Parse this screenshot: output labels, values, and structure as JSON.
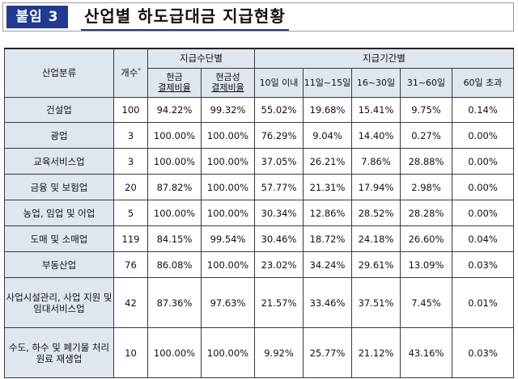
{
  "header": {
    "badge": "붙임 3",
    "title": "산업별 하도급대금 지급현황"
  },
  "table": {
    "col_industry": "산업분류",
    "col_count": "개수",
    "col_count_mark": "*",
    "group_method": "지급수단별",
    "method_cols": [
      {
        "line1": "현금",
        "line2": "결제비율"
      },
      {
        "line1": "현금성",
        "line2": "결제비율"
      }
    ],
    "group_period": "지급기간별",
    "period_cols": [
      "10일 이내",
      "11일~15일",
      "16~30일",
      "31~60일",
      "60일 초과"
    ],
    "rows": [
      {
        "industry": "건설업",
        "count": "100",
        "cash": "94.22%",
        "cashlike": "99.32%",
        "p1": "55.02%",
        "p2": "19.68%",
        "p3": "15.41%",
        "p4": "9.75%",
        "p5": "0.14%"
      },
      {
        "industry": "광업",
        "count": "3",
        "cash": "100.00%",
        "cashlike": "100.00%",
        "p1": "76.29%",
        "p2": "9.04%",
        "p3": "14.40%",
        "p4": "0.27%",
        "p5": "0.00%"
      },
      {
        "industry": "교육서비스업",
        "count": "3",
        "cash": "100.00%",
        "cashlike": "100.00%",
        "p1": "37.05%",
        "p2": "26.21%",
        "p3": "7.86%",
        "p4": "28.88%",
        "p5": "0.00%"
      },
      {
        "industry": "금융 및 보험업",
        "count": "20",
        "cash": "87.82%",
        "cashlike": "100.00%",
        "p1": "57.77%",
        "p2": "21.31%",
        "p3": "17.94%",
        "p4": "2.98%",
        "p5": "0.00%"
      },
      {
        "industry": "농업, 임업 및 어업",
        "count": "5",
        "cash": "100.00%",
        "cashlike": "100.00%",
        "p1": "30.34%",
        "p2": "12.86%",
        "p3": "28.52%",
        "p4": "28.28%",
        "p5": "0.00%"
      },
      {
        "industry": "도매 및 소매업",
        "count": "119",
        "cash": "84.15%",
        "cashlike": "99.54%",
        "p1": "30.46%",
        "p2": "18.72%",
        "p3": "24.18%",
        "p4": "26.60%",
        "p5": "0.04%"
      },
      {
        "industry": "부동산업",
        "count": "76",
        "cash": "86.08%",
        "cashlike": "100.00%",
        "p1": "23.02%",
        "p2": "34.24%",
        "p3": "29.61%",
        "p4": "13.09%",
        "p5": "0.03%"
      },
      {
        "industry": "사업시설관리, 사업 지원 및 임대서비스업",
        "count": "42",
        "cash": "87.36%",
        "cashlike": "97.63%",
        "p1": "21.57%",
        "p2": "33.46%",
        "p3": "37.51%",
        "p4": "7.45%",
        "p5": "0.01%"
      },
      {
        "industry": "수도, 하수 및 폐기물 처리 원료 재생업",
        "count": "10",
        "cash": "100.00%",
        "cashlike": "100.00%",
        "p1": "9.92%",
        "p2": "25.77%",
        "p3": "21.12%",
        "p4": "43.16%",
        "p5": "0.03%"
      }
    ]
  }
}
